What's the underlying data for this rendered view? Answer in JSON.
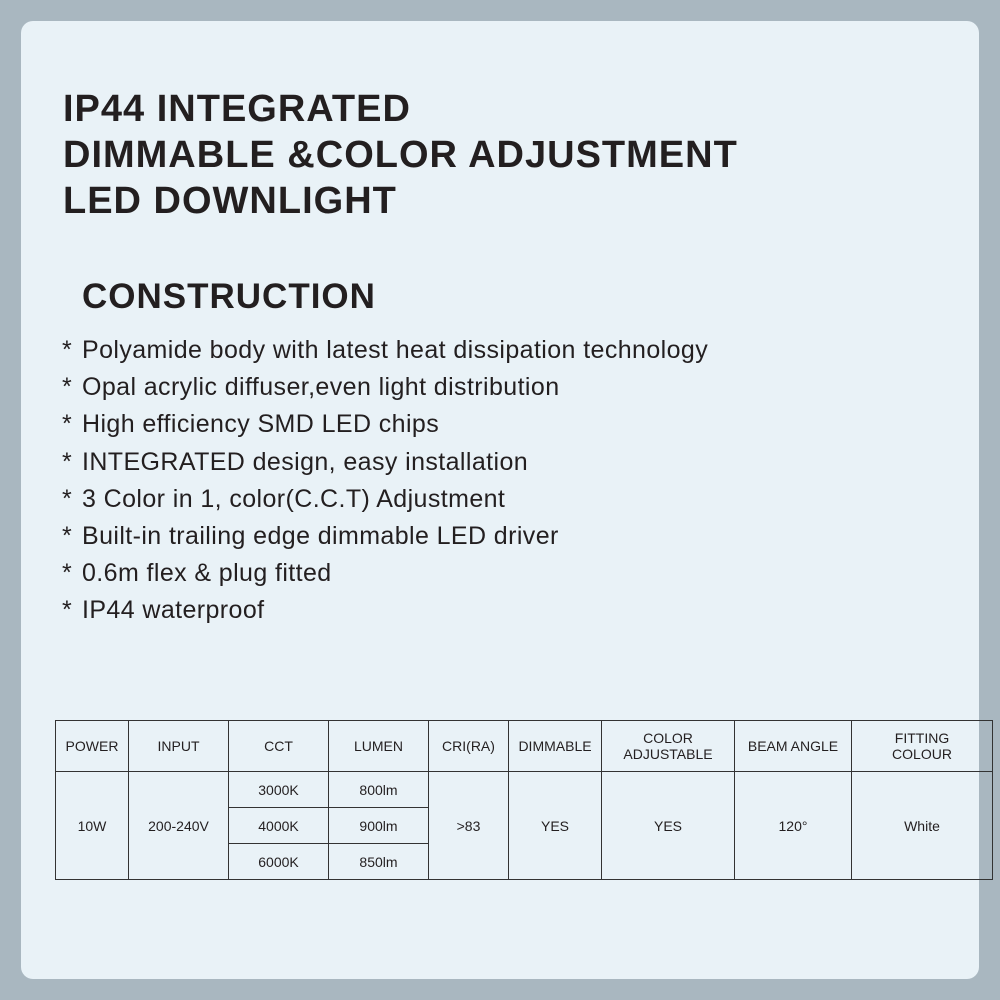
{
  "title_lines": [
    "IP44  INTEGRATED",
    "DIMMABLE &COLOR ADJUSTMENT",
    "LED DOWNLIGHT"
  ],
  "section_title": "CONSTRUCTION",
  "bullet": "*",
  "features": [
    "Polyamide body with latest heat dissipation technology",
    "Opal acrylic diffuser,even light distribution",
    "High efficiency SMD LED chips",
    "INTEGRATED design, easy  installation",
    "3  Color  in  1, color(C.C.T)  Adjustment",
    "Built-in  trailing  edge  dimmable LED driver",
    "0.6m flex & plug fitted",
    "IP44  waterproof"
  ],
  "table": {
    "headers": [
      "POWER",
      "INPUT",
      "CCT",
      "LUMEN",
      "CRI(RA)",
      "DIMMABLE",
      "COLOR ADJUSTABLE",
      "BEAM ANGLE",
      "FITTING COLOUR"
    ],
    "power": "10W",
    "input": "200-240V",
    "variants": [
      {
        "cct": "3000K",
        "lumen": "800lm"
      },
      {
        "cct": "4000K",
        "lumen": "900lm"
      },
      {
        "cct": "6000K",
        "lumen": "850lm"
      }
    ],
    "cri": ">83",
    "dimmable": "YES",
    "color_adjustable": "YES",
    "beam_angle": "120°",
    "fitting_colour": "White"
  },
  "colors": {
    "background": "#a9b7c0",
    "card": "#e9f2f7",
    "text": "#231f20"
  }
}
